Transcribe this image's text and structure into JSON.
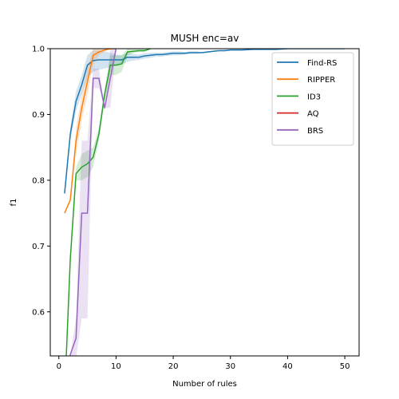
{
  "chart_data": {
    "type": "line",
    "title": "MUSH enc=av",
    "xlabel": "Number of rules",
    "ylabel": "f1",
    "xlim": [
      -1.5,
      52.5
    ],
    "ylim": [
      0.533,
      1.0
    ],
    "xticks": [
      0,
      10,
      20,
      30,
      40,
      50
    ],
    "yticks": [
      0.6,
      0.7,
      0.8,
      0.9,
      1.0
    ],
    "xtick_labels": [
      "0",
      "10",
      "20",
      "30",
      "40",
      "50"
    ],
    "ytick_labels": [
      "0.6",
      "0.7",
      "0.8",
      "0.9",
      "1.0"
    ],
    "legend_position": "top-right",
    "series": [
      {
        "name": "Find-RS",
        "color": "#1f77b4",
        "x": [
          1,
          2,
          3,
          4,
          5,
          6,
          7,
          8,
          9,
          10,
          11,
          12,
          13,
          14,
          15,
          16,
          17,
          18,
          19,
          20,
          21,
          22,
          23,
          24,
          25,
          26,
          27,
          28,
          29,
          30,
          32,
          34,
          36,
          38,
          40,
          42,
          44,
          46,
          48,
          50
        ],
        "y": [
          0.78,
          0.87,
          0.92,
          0.945,
          0.975,
          0.982,
          0.983,
          0.983,
          0.983,
          0.983,
          0.983,
          0.987,
          0.987,
          0.987,
          0.989,
          0.99,
          0.991,
          0.991,
          0.992,
          0.993,
          0.993,
          0.993,
          0.994,
          0.994,
          0.994,
          0.995,
          0.996,
          0.997,
          0.997,
          0.998,
          0.998,
          0.999,
          0.999,
          0.999,
          1.0,
          1.0,
          1.0,
          1.0,
          1.0,
          1.0
        ],
        "lower": [
          0.78,
          0.86,
          0.905,
          0.93,
          0.955,
          0.965,
          0.968,
          0.97,
          0.972,
          0.975,
          0.976,
          0.98,
          0.982,
          0.983,
          0.985,
          0.986,
          0.988,
          0.988,
          0.989,
          0.99,
          0.99,
          0.991,
          0.992,
          0.992,
          0.993,
          0.994,
          0.995,
          0.996,
          0.996,
          0.997,
          0.997,
          0.998,
          0.998,
          0.999,
          1.0,
          1.0,
          1.0,
          1.0,
          1.0,
          1.0
        ],
        "upper": [
          0.78,
          0.88,
          0.935,
          0.96,
          0.99,
          0.998,
          0.998,
          0.996,
          0.994,
          0.991,
          0.99,
          0.994,
          0.992,
          0.991,
          0.993,
          0.994,
          0.994,
          0.994,
          0.995,
          0.996,
          0.996,
          0.995,
          0.996,
          0.996,
          0.995,
          0.996,
          0.997,
          0.998,
          0.998,
          0.999,
          0.999,
          1.0,
          1.0,
          1.0,
          1.0,
          1.0,
          1.0,
          1.0,
          1.0,
          1.0
        ]
      },
      {
        "name": "RIPPER",
        "color": "#ff7f0e",
        "x": [
          1,
          2,
          3,
          4,
          5,
          6,
          7,
          8,
          9,
          10
        ],
        "y": [
          0.75,
          0.77,
          0.86,
          0.91,
          0.95,
          0.99,
          0.995,
          0.998,
          1.0,
          1.0
        ],
        "lower": [
          0.75,
          0.77,
          0.84,
          0.89,
          0.93,
          0.975,
          0.99,
          0.996,
          1.0,
          1.0
        ],
        "upper": [
          0.75,
          0.77,
          0.88,
          0.93,
          0.97,
          1.0,
          1.0,
          1.0,
          1.0,
          1.0
        ]
      },
      {
        "name": "ID3",
        "color": "#2ca02c",
        "x": [
          1,
          2,
          3,
          4,
          5,
          6,
          7,
          8,
          9,
          10,
          11,
          12,
          13,
          14,
          15,
          16
        ],
        "y": [
          0.47,
          0.68,
          0.81,
          0.82,
          0.825,
          0.835,
          0.87,
          0.93,
          0.975,
          0.975,
          0.977,
          0.995,
          0.996,
          0.997,
          0.997,
          1.0
        ],
        "lower": [
          0.47,
          0.68,
          0.8,
          0.8,
          0.805,
          0.82,
          0.86,
          0.92,
          0.96,
          0.96,
          0.965,
          0.99,
          0.993,
          0.995,
          0.995,
          1.0
        ],
        "upper": [
          0.47,
          0.68,
          0.82,
          0.84,
          0.845,
          0.85,
          0.88,
          0.94,
          0.99,
          0.99,
          0.99,
          1.0,
          1.0,
          1.0,
          1.0,
          1.0
        ]
      },
      {
        "name": "AQ",
        "color": "#d62728",
        "x": [],
        "y": [],
        "lower": [],
        "upper": []
      },
      {
        "name": "BRS",
        "color": "#9467bd",
        "x": [
          1,
          2,
          3,
          4,
          5,
          6,
          7,
          8,
          9,
          10
        ],
        "y": [
          0.45,
          0.535,
          0.56,
          0.75,
          0.75,
          0.955,
          0.955,
          0.91,
          0.955,
          1.0
        ],
        "lower": [
          0.45,
          0.535,
          0.53,
          0.59,
          0.59,
          0.94,
          0.94,
          0.91,
          0.91,
          1.0
        ],
        "upper": [
          0.45,
          0.535,
          0.59,
          0.86,
          0.86,
          0.97,
          0.97,
          0.91,
          1.0,
          1.0
        ]
      }
    ]
  }
}
